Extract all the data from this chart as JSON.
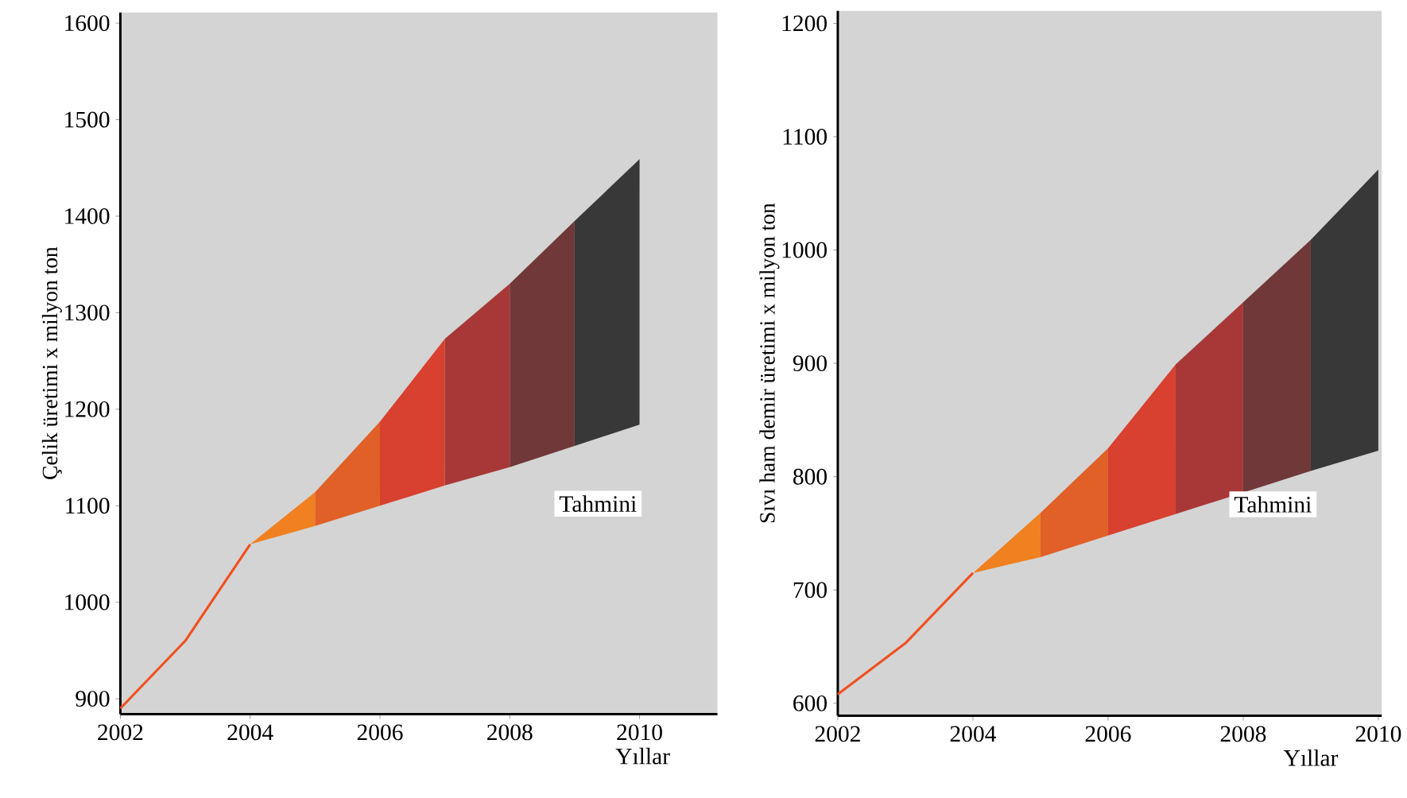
{
  "chart_data": [
    {
      "type": "line",
      "ylabel": "Çelik üretimi x milyon ton",
      "xlabel": "Yıllar",
      "xlim": [
        2002,
        2011.2
      ],
      "ylim": [
        884,
        1611
      ],
      "xticks": [
        2002,
        2004,
        2006,
        2008,
        2010
      ],
      "yticks": [
        900,
        1000,
        1100,
        1200,
        1300,
        1400,
        1500,
        1600
      ],
      "series": [
        {
          "color": "#f05020",
          "x": [
            2002,
            2003,
            2004
          ],
          "values": [
            890,
            960,
            1060
          ]
        },
        {
          "type": "area",
          "color": "#f08020",
          "x": [
            2004,
            2005
          ],
          "values": [
            null,
            null
          ],
          "lower": [
            1060,
            1079
          ],
          "upper": [
            1060,
            1114
          ]
        },
        {
          "type": "area",
          "color": "#e06028",
          "x": [
            2005,
            2006
          ],
          "values": [
            null,
            null
          ],
          "lower": [
            1079,
            1100
          ],
          "upper": [
            1114,
            1187
          ]
        },
        {
          "type": "area",
          "color": "#d84030",
          "x": [
            2006,
            2007
          ],
          "values": [
            null,
            null
          ],
          "lower": [
            1100,
            1121
          ],
          "upper": [
            1187,
            1273
          ]
        },
        {
          "type": "area",
          "color": "#a83838",
          "x": [
            2007,
            2008
          ],
          "values": [
            null,
            null
          ],
          "lower": [
            1121,
            1140
          ],
          "upper": [
            1273,
            1330
          ]
        },
        {
          "type": "area",
          "color": "#703838",
          "x": [
            2008,
            2009
          ],
          "values": [
            null,
            null
          ],
          "lower": [
            1140,
            1162
          ],
          "upper": [
            1330,
            1395
          ]
        },
        {
          "type": "area",
          "color": "#383838",
          "x": [
            2009,
            2010
          ],
          "values": [
            null,
            null
          ],
          "lower": [
            1162,
            1184
          ],
          "upper": [
            1395,
            1459
          ]
        }
      ],
      "annotations": [
        "Tahmini"
      ]
    },
    {
      "type": "line",
      "ylabel": "Sıvı ham  demir üretimi x milyon ton",
      "xlabel": "Yıllar",
      "xlim": [
        2002,
        2010.05
      ],
      "ylim": [
        589,
        1211
      ],
      "xticks": [
        2002,
        2004,
        2006,
        2008,
        2010
      ],
      "yticks": [
        600,
        700,
        800,
        900,
        1000,
        1100,
        1200
      ],
      "series": [
        {
          "color": "#f05020",
          "x": [
            2002,
            2003,
            2004
          ],
          "values": [
            608,
            653,
            715
          ]
        },
        {
          "type": "area",
          "color": "#f08020",
          "x": [
            2004,
            2005
          ],
          "values": [
            null,
            null
          ],
          "lower": [
            715,
            729
          ],
          "upper": [
            715,
            768
          ]
        },
        {
          "type": "area",
          "color": "#e06028",
          "x": [
            2005,
            2006
          ],
          "values": [
            null,
            null
          ],
          "lower": [
            729,
            748
          ],
          "upper": [
            768,
            825
          ]
        },
        {
          "type": "area",
          "color": "#d84030",
          "x": [
            2006,
            2007
          ],
          "values": [
            null,
            null
          ],
          "lower": [
            748,
            767
          ],
          "upper": [
            825,
            899
          ]
        },
        {
          "type": "area",
          "color": "#a83838",
          "x": [
            2007,
            2008
          ],
          "values": [
            null,
            null
          ],
          "lower": [
            767,
            786
          ],
          "upper": [
            899,
            954
          ]
        },
        {
          "type": "area",
          "color": "#703838",
          "x": [
            2008,
            2009
          ],
          "values": [
            null,
            null
          ],
          "lower": [
            786,
            805
          ],
          "upper": [
            954,
            1009
          ]
        },
        {
          "type": "area",
          "color": "#383838",
          "x": [
            2009,
            2010
          ],
          "values": [
            null,
            null
          ],
          "lower": [
            805,
            823
          ],
          "upper": [
            1009,
            1071
          ]
        }
      ],
      "annotations": [
        "Tahmini"
      ]
    }
  ]
}
